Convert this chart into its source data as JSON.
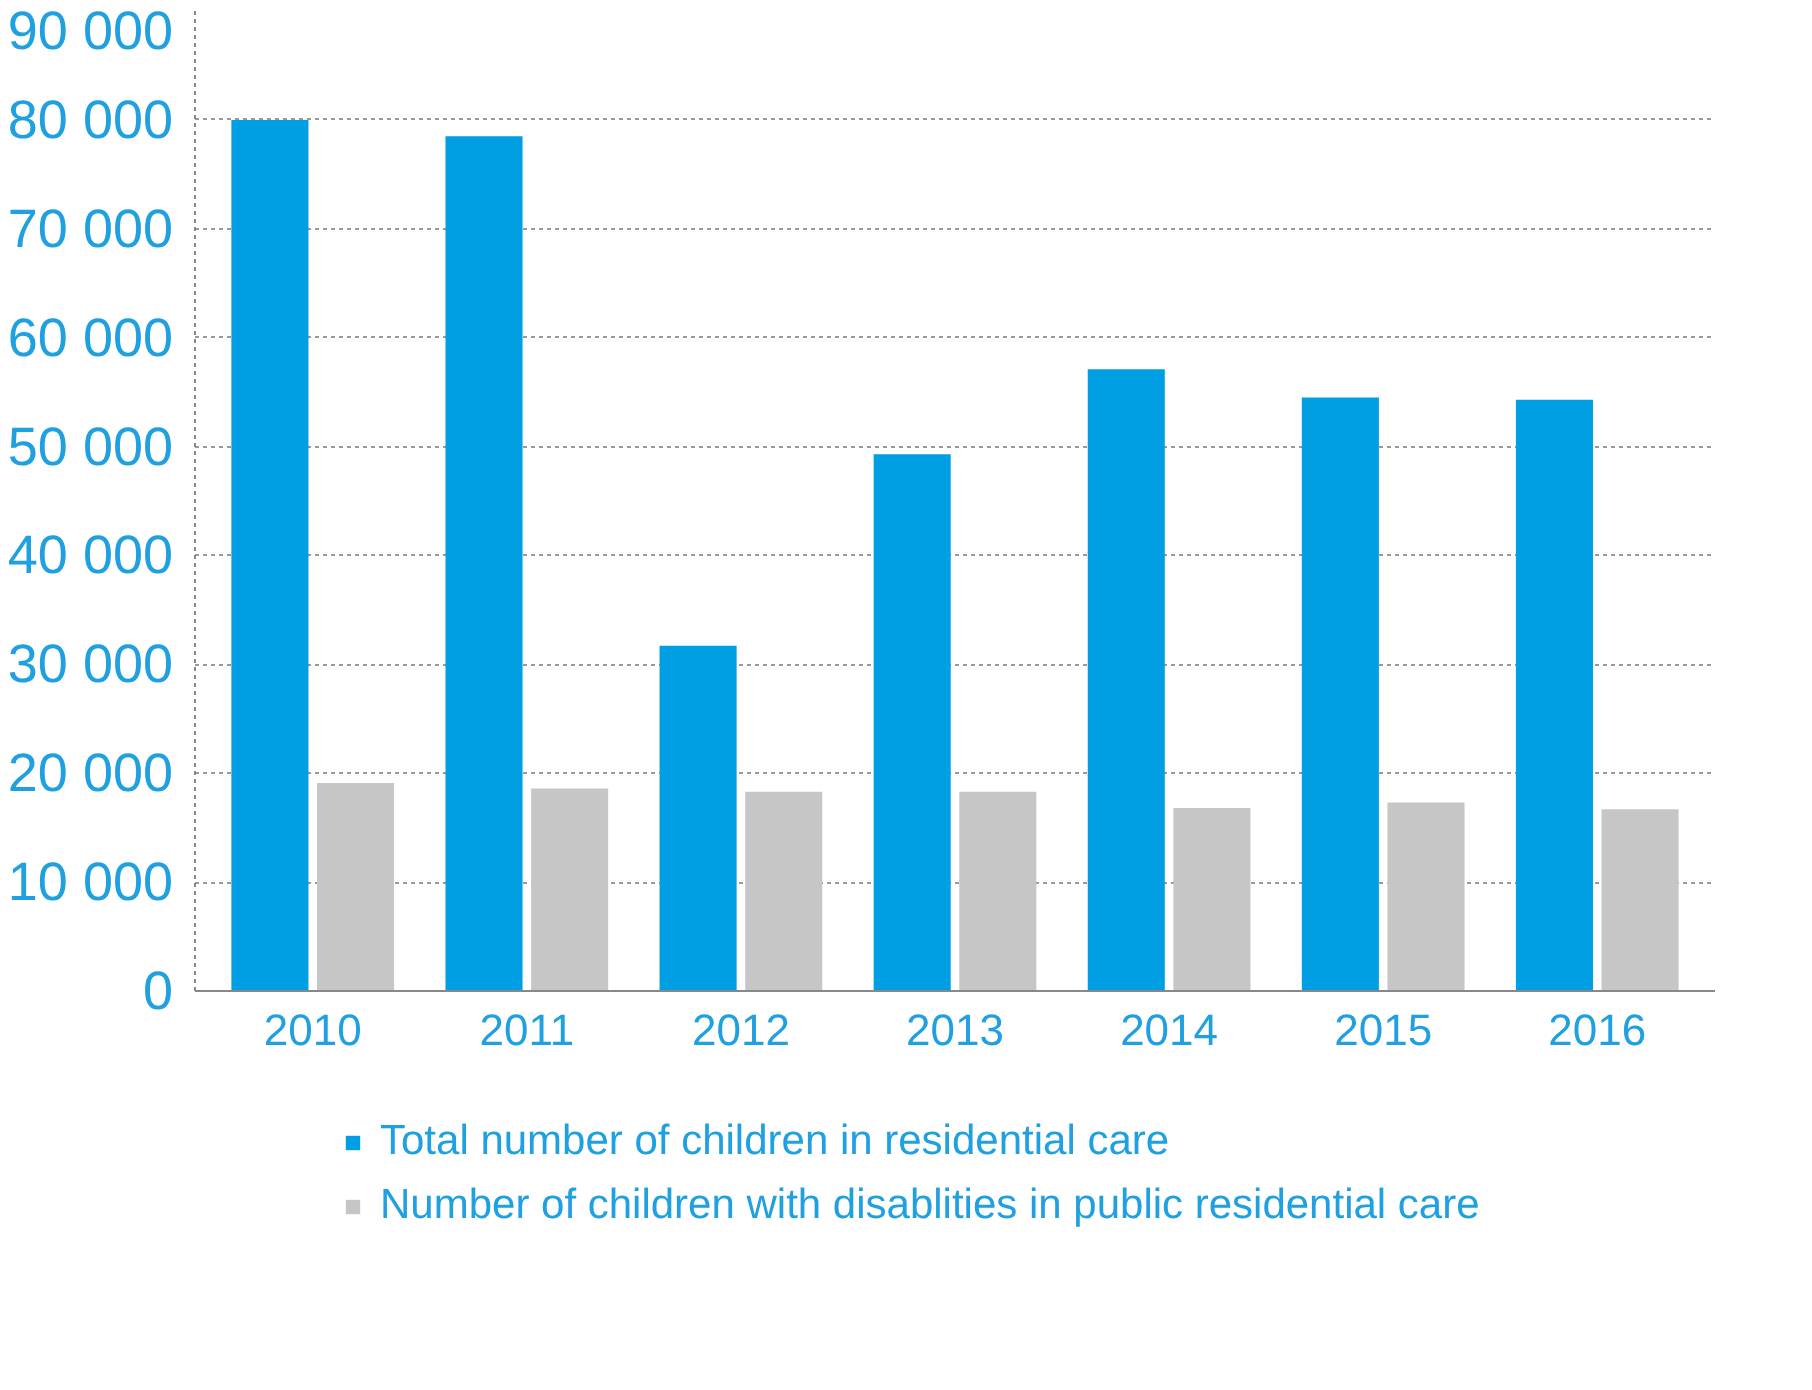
{
  "chart_data": {
    "type": "bar",
    "categories": [
      "2010",
      "2011",
      "2012",
      "2013",
      "2014",
      "2015",
      "2016"
    ],
    "series": [
      {
        "name": "Total number of children in residential care",
        "color": "#009fe3",
        "values": [
          80000,
          78500,
          31700,
          49300,
          57100,
          54500,
          54300
        ]
      },
      {
        "name": "Number of children with disablities in public residential care",
        "color": "#c6c6c6",
        "values": [
          19100,
          18600,
          18300,
          18300,
          16800,
          17300,
          16700
        ]
      }
    ],
    "ylim": [
      0,
      90000
    ],
    "yticks": [
      {
        "value": 0,
        "label": "0"
      },
      {
        "value": 10000,
        "label": "10 000"
      },
      {
        "value": 20000,
        "label": "20 000"
      },
      {
        "value": 30000,
        "label": "30 000"
      },
      {
        "value": 40000,
        "label": "40 000"
      },
      {
        "value": 50000,
        "label": "50 000"
      },
      {
        "value": 60000,
        "label": "60 000"
      },
      {
        "value": 70000,
        "label": "70 000"
      },
      {
        "value": 80000,
        "label": "80 000"
      },
      {
        "value": 90000,
        "label": "90 000"
      }
    ],
    "grid": "y",
    "legend": "bottom"
  }
}
